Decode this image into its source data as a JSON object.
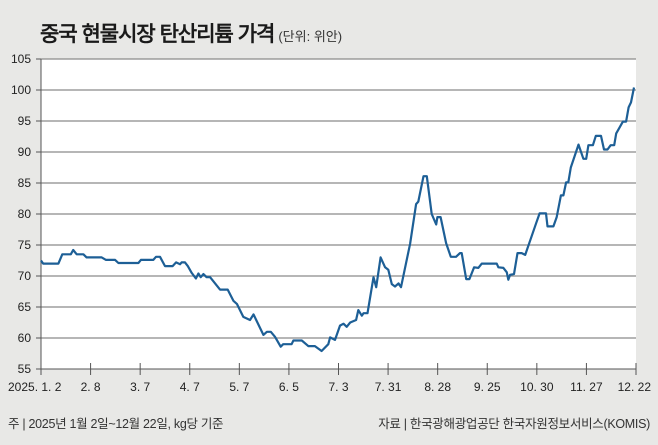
{
  "chart_data": {
    "type": "line",
    "title": "중국 현물시장 탄산리튬 가격",
    "unit_label": "(단위: 위안)",
    "xlabel": "",
    "ylabel": "",
    "ylim": [
      55,
      105
    ],
    "yticks": [
      55,
      60,
      65,
      70,
      75,
      80,
      85,
      90,
      95,
      100,
      105
    ],
    "xlim": [
      0,
      240
    ],
    "xticks": [
      {
        "x": 0,
        "label": "2025. 1. 2"
      },
      {
        "x": 20,
        "label": "2. 8"
      },
      {
        "x": 40,
        "label": "3. 7"
      },
      {
        "x": 60,
        "label": "4. 7"
      },
      {
        "x": 80,
        "label": "5. 7"
      },
      {
        "x": 100,
        "label": "6. 5"
      },
      {
        "x": 120,
        "label": "7. 3"
      },
      {
        "x": 140,
        "label": "7. 31"
      },
      {
        "x": 160,
        "label": "8. 28"
      },
      {
        "x": 180,
        "label": "9. 25"
      },
      {
        "x": 200,
        "label": "10. 30"
      },
      {
        "x": 220,
        "label": "11. 27"
      },
      {
        "x": 240,
        "label": "12. 22"
      }
    ],
    "grid": true,
    "color": "#1d5f96",
    "series": [
      {
        "name": "탄산리튬 가격",
        "points": [
          [
            0,
            72.5
          ],
          [
            0.9,
            72
          ],
          [
            7,
            72
          ],
          [
            8.6,
            73.5
          ],
          [
            12,
            73.5
          ],
          [
            13,
            74.2
          ],
          [
            14.4,
            73.5
          ],
          [
            17.1,
            73.5
          ],
          [
            18.4,
            73
          ],
          [
            24.5,
            73
          ],
          [
            26.2,
            72.6
          ],
          [
            29.9,
            72.6
          ],
          [
            31.2,
            72.1
          ],
          [
            39.3,
            72.1
          ],
          [
            40.3,
            72.6
          ],
          [
            45.3,
            72.6
          ],
          [
            46.4,
            73.1
          ],
          [
            48,
            73.1
          ],
          [
            50,
            71.6
          ],
          [
            53.1,
            71.6
          ],
          [
            54.5,
            72.2
          ],
          [
            56.1,
            71.9
          ],
          [
            56.7,
            72.2
          ],
          [
            58.1,
            72.2
          ],
          [
            59.2,
            71.6
          ],
          [
            60.8,
            70.5
          ],
          [
            62.5,
            69.6
          ],
          [
            63.5,
            70.4
          ],
          [
            64.4,
            69.8
          ],
          [
            65.5,
            70.3
          ],
          [
            66.8,
            69.8
          ],
          [
            68.2,
            69.8
          ],
          [
            72.2,
            67.8
          ],
          [
            75.3,
            67.8
          ],
          [
            77.6,
            66
          ],
          [
            79,
            65.5
          ],
          [
            81.6,
            63.4
          ],
          [
            84.3,
            62.9
          ],
          [
            85.7,
            63.8
          ],
          [
            89.7,
            60.5
          ],
          [
            91.1,
            61
          ],
          [
            92.7,
            61
          ],
          [
            94.4,
            60.2
          ],
          [
            96.7,
            58.6
          ],
          [
            97.7,
            59
          ],
          [
            101.1,
            59
          ],
          [
            101.8,
            59.6
          ],
          [
            105.2,
            59.6
          ],
          [
            107.8,
            58.7
          ],
          [
            110.5,
            58.7
          ],
          [
            113.2,
            57.9
          ],
          [
            115.9,
            59
          ],
          [
            116.6,
            60.1
          ],
          [
            118.6,
            59.7
          ],
          [
            120.6,
            62
          ],
          [
            122,
            62.3
          ],
          [
            123.3,
            61.8
          ],
          [
            124.7,
            62.5
          ],
          [
            127.1,
            62.9
          ],
          [
            128,
            64.5
          ],
          [
            129.4,
            63.6
          ],
          [
            130.1,
            64
          ],
          [
            131.7,
            64
          ],
          [
            134.1,
            69.8
          ],
          [
            135.2,
            68.2
          ],
          [
            137,
            73
          ],
          [
            138.8,
            71.4
          ],
          [
            140.1,
            71
          ],
          [
            141.5,
            68.7
          ],
          [
            142.8,
            68.3
          ],
          [
            144.2,
            68.8
          ],
          [
            145.2,
            68.2
          ],
          [
            148.9,
            75.2
          ],
          [
            151.3,
            81.6
          ],
          [
            152.2,
            82
          ],
          [
            154.3,
            86.1
          ],
          [
            155.6,
            86.1
          ],
          [
            157.6,
            80
          ],
          [
            159.4,
            78.3
          ],
          [
            159.9,
            79.5
          ],
          [
            161.2,
            79.5
          ],
          [
            163.4,
            75.3
          ],
          [
            165.3,
            73.1
          ],
          [
            167.4,
            73.1
          ],
          [
            169,
            73.7
          ],
          [
            169.7,
            73.7
          ],
          [
            171.5,
            69.5
          ],
          [
            172.8,
            69.5
          ],
          [
            174.7,
            71.4
          ],
          [
            176.4,
            71.3
          ],
          [
            177.8,
            72
          ],
          [
            183.8,
            72
          ],
          [
            184.5,
            71.4
          ],
          [
            186.5,
            71.3
          ],
          [
            187.9,
            70.6
          ],
          [
            188.5,
            69.4
          ],
          [
            189.2,
            70.2
          ],
          [
            190.8,
            70.3
          ],
          [
            192.2,
            73.7
          ],
          [
            193.9,
            73.7
          ],
          [
            195.3,
            73.4
          ],
          [
            197.3,
            75.7
          ],
          [
            199.7,
            78.5
          ],
          [
            201.1,
            80.1
          ],
          [
            203.7,
            80.1
          ],
          [
            204.3,
            78
          ],
          [
            206.7,
            78
          ],
          [
            208,
            79.5
          ],
          [
            209.7,
            83
          ],
          [
            210.7,
            83
          ],
          [
            211.8,
            85.1
          ],
          [
            212.7,
            85.1
          ],
          [
            213.7,
            87.5
          ],
          [
            216.8,
            91.2
          ],
          [
            218.8,
            88.9
          ],
          [
            219.9,
            88.9
          ],
          [
            220.8,
            91.1
          ],
          [
            222.6,
            91.1
          ],
          [
            223.8,
            92.6
          ],
          [
            225.9,
            92.6
          ],
          [
            227.1,
            90.4
          ],
          [
            228.5,
            90.4
          ],
          [
            229.8,
            91.1
          ],
          [
            231.2,
            91.1
          ],
          [
            232,
            93
          ],
          [
            233.3,
            93.9
          ],
          [
            234.7,
            94.9
          ],
          [
            236,
            94.9
          ],
          [
            237,
            97.2
          ],
          [
            238,
            98
          ],
          [
            239.2,
            100.4
          ]
        ]
      }
    ]
  },
  "notes": {
    "left": "주 | 2025년 1월 2일~12월 22일, kg당 기준",
    "right": "자료 | 한국광해광업공단 한국자원정보서비스(KOMIS)"
  }
}
